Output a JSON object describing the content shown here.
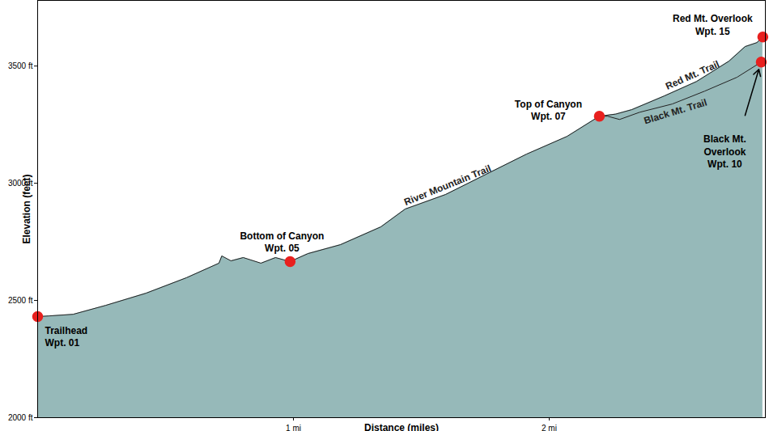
{
  "chart_data": {
    "type": "area",
    "xlabel": "Distance (miles)",
    "ylabel": "Elevation (feet)",
    "xlim": [
      0,
      2.845
    ],
    "ylim": [
      2000,
      3780
    ],
    "xticks": [
      {
        "value": 1,
        "label": "1 mi"
      },
      {
        "value": 2,
        "label": "2 mi"
      }
    ],
    "yticks": [
      {
        "value": 2000,
        "label": "2000 ft"
      },
      {
        "value": 2500,
        "label": "2500 ft"
      },
      {
        "value": 3000,
        "label": "3000 ft"
      },
      {
        "value": 3500,
        "label": "3500 ft"
      }
    ],
    "grid": false,
    "color": "#96b9b9",
    "series": [
      {
        "name": "River Mountain Trail",
        "type": "area",
        "color": "#222222",
        "x": [
          0,
          0.044,
          0.139,
          0.266,
          0.424,
          0.582,
          0.709,
          0.72,
          0.756,
          0.804,
          0.873,
          0.93,
          0.987,
          1.057,
          1.184,
          1.342,
          1.437,
          1.595,
          1.753,
          1.911,
          2.07,
          2.196
        ],
        "values": [
          2431,
          2434,
          2441,
          2479,
          2531,
          2597,
          2659,
          2690,
          2669,
          2683,
          2659,
          2683,
          2666,
          2700,
          2738,
          2814,
          2890,
          2952,
          3038,
          3124,
          3200,
          3286
        ]
      },
      {
        "name": "Red Mt. Trail",
        "type": "area",
        "color": "#222222",
        "x": [
          2.196,
          2.26,
          2.323,
          2.449,
          2.576,
          2.703,
          2.766,
          2.812,
          2.835
        ],
        "values": [
          3286,
          3295,
          3314,
          3372,
          3434,
          3521,
          3583,
          3600,
          3624
        ]
      },
      {
        "name": "Black Mt. Trail",
        "type": "line",
        "color": "#222222",
        "x": [
          2.196,
          2.228,
          2.275,
          2.354,
          2.481,
          2.608,
          2.734,
          2.829
        ],
        "values": [
          3286,
          3286,
          3272,
          3303,
          3338,
          3393,
          3452,
          3517
        ]
      }
    ],
    "waypoints": {
      "color": "#e8201e",
      "points": [
        {
          "text": [
            "Trailhead",
            "Wpt. 01"
          ],
          "x": 0,
          "y": 2431
        },
        {
          "text": [
            "Bottom of Canyon",
            "Wpt. 05"
          ],
          "x": 0.987,
          "y": 2666
        },
        {
          "text": [
            "Top of Canyon",
            "Wpt. 07"
          ],
          "x": 2.196,
          "y": 3286
        },
        {
          "text": [
            "Red Mt. Overlook",
            "Wpt. 15"
          ],
          "x": 2.835,
          "y": 3624
        },
        {
          "text": [
            "Black Mt.",
            "Overlook",
            "Wpt. 10"
          ],
          "x": 2.829,
          "y": 3517
        }
      ]
    }
  }
}
